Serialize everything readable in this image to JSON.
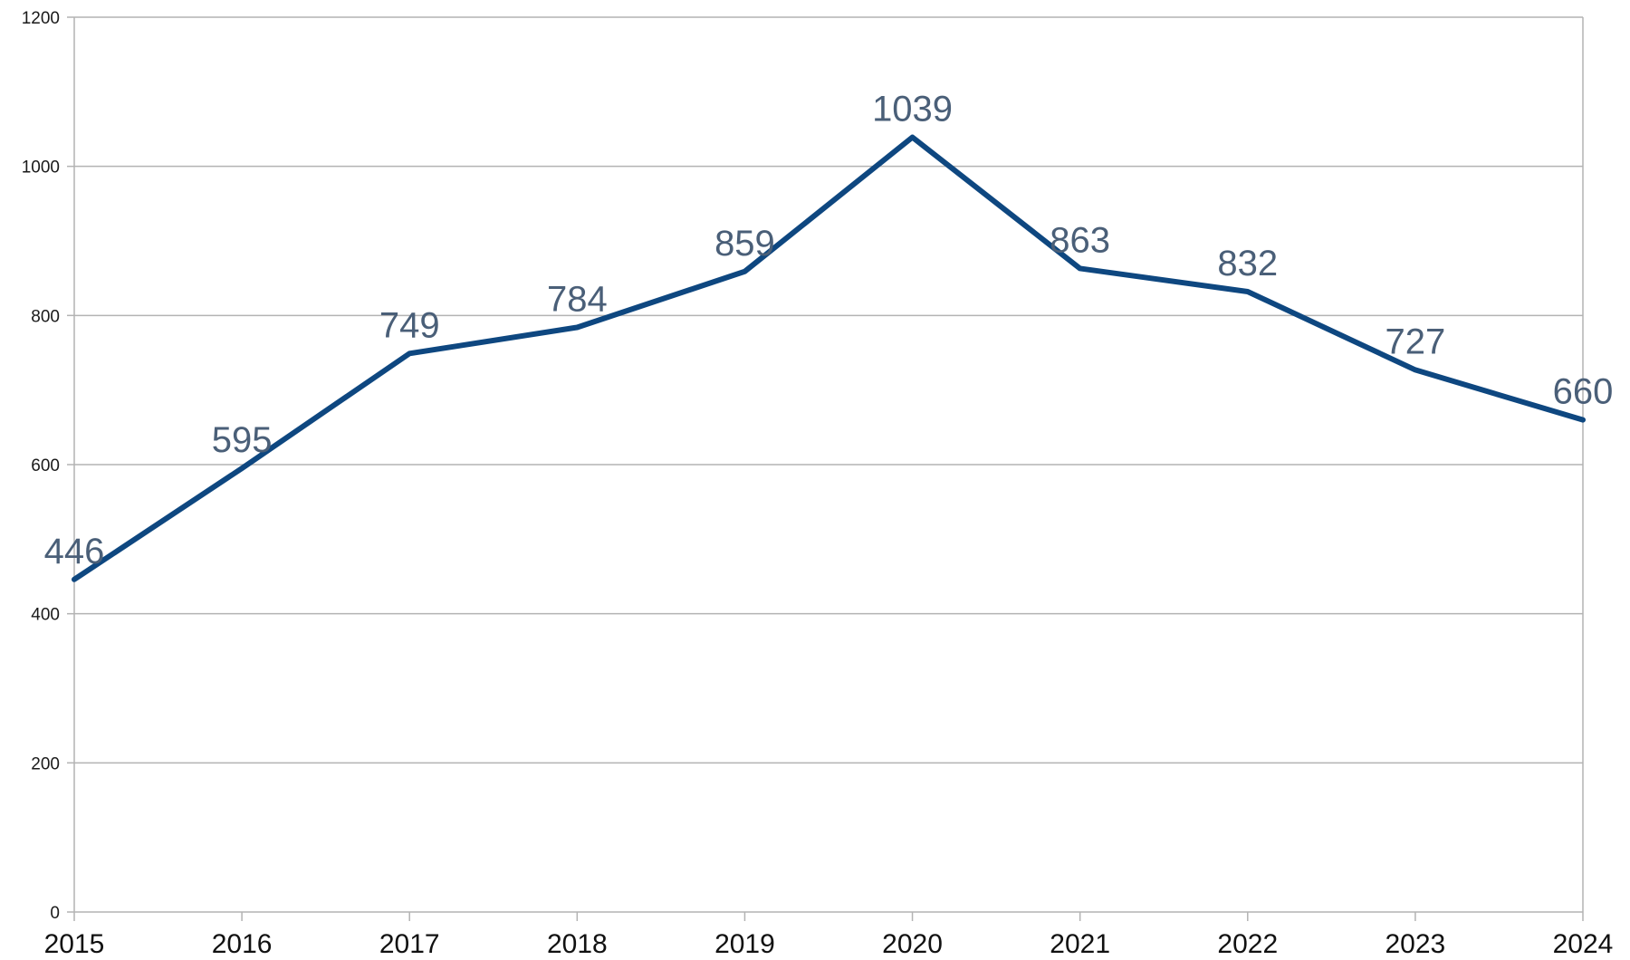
{
  "chart_data": {
    "type": "line",
    "title": "",
    "xlabel": "",
    "ylabel": "",
    "categories": [
      "2015",
      "2016",
      "2017",
      "2018",
      "2019",
      "2020",
      "2021",
      "2022",
      "2023",
      "2024"
    ],
    "series": [
      {
        "values": [
          446,
          595,
          749,
          784,
          859,
          1039,
          863,
          832,
          727,
          660
        ]
      }
    ],
    "ylim": [
      0,
      1200
    ],
    "yticks": [
      0,
      200,
      400,
      600,
      800,
      1000,
      1200
    ],
    "grid": "horizontal",
    "legend": "none",
    "data_labels": true,
    "colors": {
      "line": "#0e4780",
      "data_label": "#4a5f78",
      "grid": "#b3b3b3",
      "axis": "#b3b3b3"
    }
  }
}
